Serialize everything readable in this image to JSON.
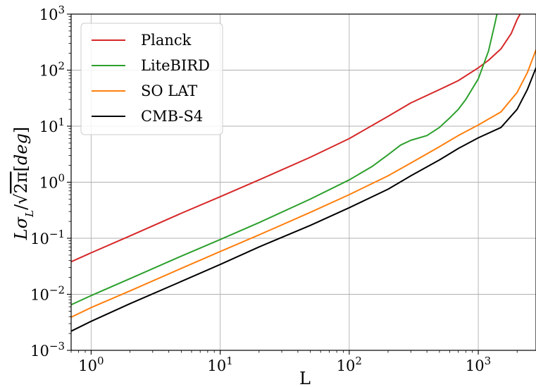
{
  "chart_data": {
    "type": "line",
    "xlabel": "L",
    "ylabel": "Lσ_L/√(2π)[deg]",
    "xscale": "log",
    "yscale": "log",
    "xlim": [
      0.7,
      2800
    ],
    "ylim": [
      0.001,
      1000
    ],
    "grid": true,
    "legend_position": "top-left",
    "x_ticks": [
      {
        "value": 1,
        "base": "10",
        "exp": "0"
      },
      {
        "value": 10,
        "base": "10",
        "exp": "1"
      },
      {
        "value": 100,
        "base": "10",
        "exp": "2"
      },
      {
        "value": 1000,
        "base": "10",
        "exp": "3"
      }
    ],
    "y_ticks": [
      {
        "value": 0.001,
        "base": "10",
        "exp": "−3"
      },
      {
        "value": 0.01,
        "base": "10",
        "exp": "−2"
      },
      {
        "value": 0.1,
        "base": "10",
        "exp": "−1"
      },
      {
        "value": 1,
        "base": "10",
        "exp": "0"
      },
      {
        "value": 10,
        "base": "10",
        "exp": "1"
      },
      {
        "value": 100,
        "base": "10",
        "exp": "2"
      },
      {
        "value": 1000,
        "base": "10",
        "exp": "3"
      }
    ],
    "series": [
      {
        "name": "Planck",
        "color": "#d62728",
        "x": [
          0.7,
          1,
          2,
          5,
          10,
          20,
          50,
          100,
          200,
          300,
          500,
          700,
          1000,
          1200,
          1500,
          1800,
          2000,
          2200
        ],
        "y": [
          0.038,
          0.055,
          0.11,
          0.28,
          0.55,
          1.1,
          2.8,
          6,
          15,
          26,
          45,
          65,
          110,
          150,
          240,
          450,
          800,
          1200
        ]
      },
      {
        "name": "LiteBIRD",
        "color": "#2ca02c",
        "x": [
          0.7,
          1,
          2,
          5,
          10,
          20,
          50,
          100,
          150,
          200,
          250,
          300,
          400,
          500,
          600,
          700,
          800,
          1000,
          1200,
          1350,
          1450
        ],
        "y": [
          0.0065,
          0.0095,
          0.019,
          0.048,
          0.095,
          0.19,
          0.5,
          1.1,
          1.9,
          3.1,
          4.6,
          5.6,
          6.8,
          9.5,
          14,
          20,
          30,
          70,
          220,
          700,
          1500
        ]
      },
      {
        "name": "SO LAT",
        "color": "#ff7f0e",
        "x": [
          0.7,
          1,
          2,
          5,
          10,
          20,
          50,
          100,
          200,
          300,
          500,
          700,
          1000,
          1500,
          2000,
          2400,
          2800
        ],
        "y": [
          0.0039,
          0.0058,
          0.0115,
          0.029,
          0.058,
          0.115,
          0.29,
          0.6,
          1.3,
          2.2,
          4.3,
          6.8,
          10.5,
          18,
          40,
          90,
          230
        ]
      },
      {
        "name": "CMB-S4",
        "color": "#000000",
        "x": [
          0.7,
          1,
          2,
          5,
          10,
          20,
          50,
          100,
          200,
          300,
          500,
          700,
          1000,
          1500,
          2000,
          2400,
          2800
        ],
        "y": [
          0.0022,
          0.0033,
          0.0068,
          0.017,
          0.034,
          0.07,
          0.17,
          0.35,
          0.75,
          1.3,
          2.5,
          4,
          6.2,
          9.5,
          20,
          45,
          110
        ]
      }
    ]
  }
}
